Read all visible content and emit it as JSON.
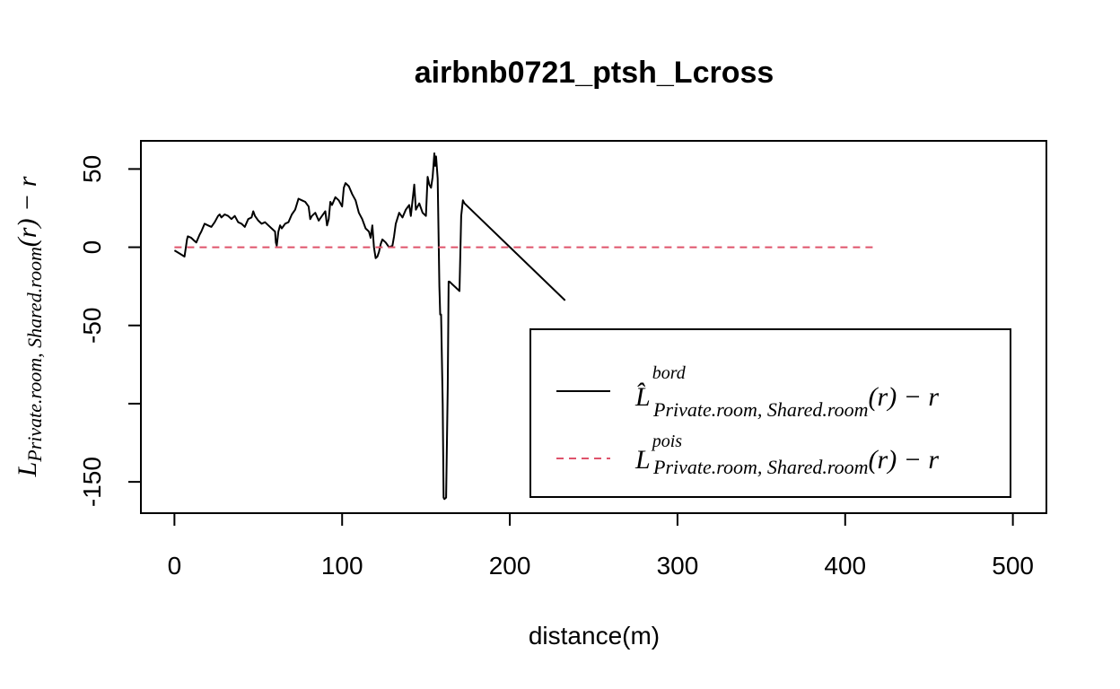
{
  "chart_data": {
    "type": "line",
    "title": "airbnb0721_ptsh_Lcross",
    "xlabel": "distance(m)",
    "ylabel": {
      "main": "L",
      "subscript": "Private.room, Shared.room",
      "suffix": "(r) − r"
    },
    "xlim": [
      -20,
      520
    ],
    "ylim": [
      -170,
      68
    ],
    "x_ticks": [
      0,
      100,
      200,
      300,
      400,
      500
    ],
    "x_tick_labels": [
      "0",
      "100",
      "200",
      "300",
      "400",
      "500"
    ],
    "y_ticks": [
      -150,
      -100,
      -50,
      0,
      50
    ],
    "y_tick_labels": [
      "-150",
      "",
      "-50",
      "0",
      "50"
    ],
    "grid": false,
    "legend_position": "bottom-right",
    "series": [
      {
        "key": "bord",
        "color": "#000000",
        "dash": "solid",
        "legend": {
          "main": "L̂",
          "superscript": "bord",
          "subscript": "Private.room, Shared.room",
          "suffix": "(r) − r"
        },
        "x": [
          0,
          3,
          6,
          7.5,
          8,
          10,
          12,
          13,
          15,
          16,
          18,
          20,
          22,
          24,
          26,
          27,
          28,
          30,
          32,
          34,
          36,
          38,
          40,
          41,
          42,
          44,
          46,
          47,
          48,
          50,
          52,
          54,
          56,
          58,
          60,
          60.5,
          61,
          62,
          63,
          64,
          66,
          68,
          70,
          72,
          74,
          76,
          78,
          80,
          81,
          82,
          84,
          86,
          88,
          90,
          91,
          92,
          93,
          94,
          96,
          98,
          100,
          101,
          102,
          104,
          106,
          108,
          110,
          112,
          114,
          116,
          117,
          118,
          119,
          120,
          121,
          122,
          123,
          124,
          126,
          128,
          130,
          131,
          132,
          134,
          136,
          138,
          140,
          141,
          142,
          143,
          144,
          146,
          148,
          150,
          151,
          152,
          153,
          154,
          155,
          155.5,
          156,
          157,
          158,
          158.5,
          159,
          160,
          160.5,
          161,
          162,
          163,
          163.5,
          164,
          166,
          168,
          170,
          171,
          172,
          173,
          233
        ],
        "y": [
          -2,
          -4,
          -6,
          5,
          7,
          6,
          4,
          3,
          8,
          10,
          15,
          14,
          13,
          16,
          20,
          21,
          19,
          21,
          20,
          18,
          20,
          16,
          15,
          14,
          13,
          18,
          19,
          23,
          20,
          17,
          15,
          16,
          14,
          12,
          10,
          3,
          1,
          10,
          14,
          12,
          15,
          16,
          21,
          24,
          31,
          30,
          29,
          26,
          18,
          20,
          22,
          17,
          20,
          23,
          14,
          18,
          29,
          27,
          32,
          30,
          26,
          38,
          41,
          39,
          34,
          30,
          22,
          18,
          12,
          10,
          6,
          14,
          0,
          -7,
          -6,
          -3,
          2,
          5,
          3,
          0,
          1,
          7,
          15,
          22,
          19,
          24,
          27,
          20,
          30,
          40,
          24,
          28,
          22,
          20,
          45,
          40,
          38,
          45,
          60,
          52,
          58,
          44,
          -25,
          -43,
          -43,
          -100,
          -160,
          -161,
          -160,
          -90,
          -22,
          -22,
          -24,
          -26,
          -28,
          20,
          30,
          28,
          -34
        ]
      },
      {
        "key": "pois",
        "color": "#DF536B",
        "dash": "dashed",
        "legend": {
          "main": "L",
          "superscript": "pois",
          "subscript": "Private.room, Shared.room",
          "suffix": "(r) − r"
        },
        "x": [
          0,
          417
        ],
        "y": [
          0,
          0
        ]
      }
    ]
  }
}
